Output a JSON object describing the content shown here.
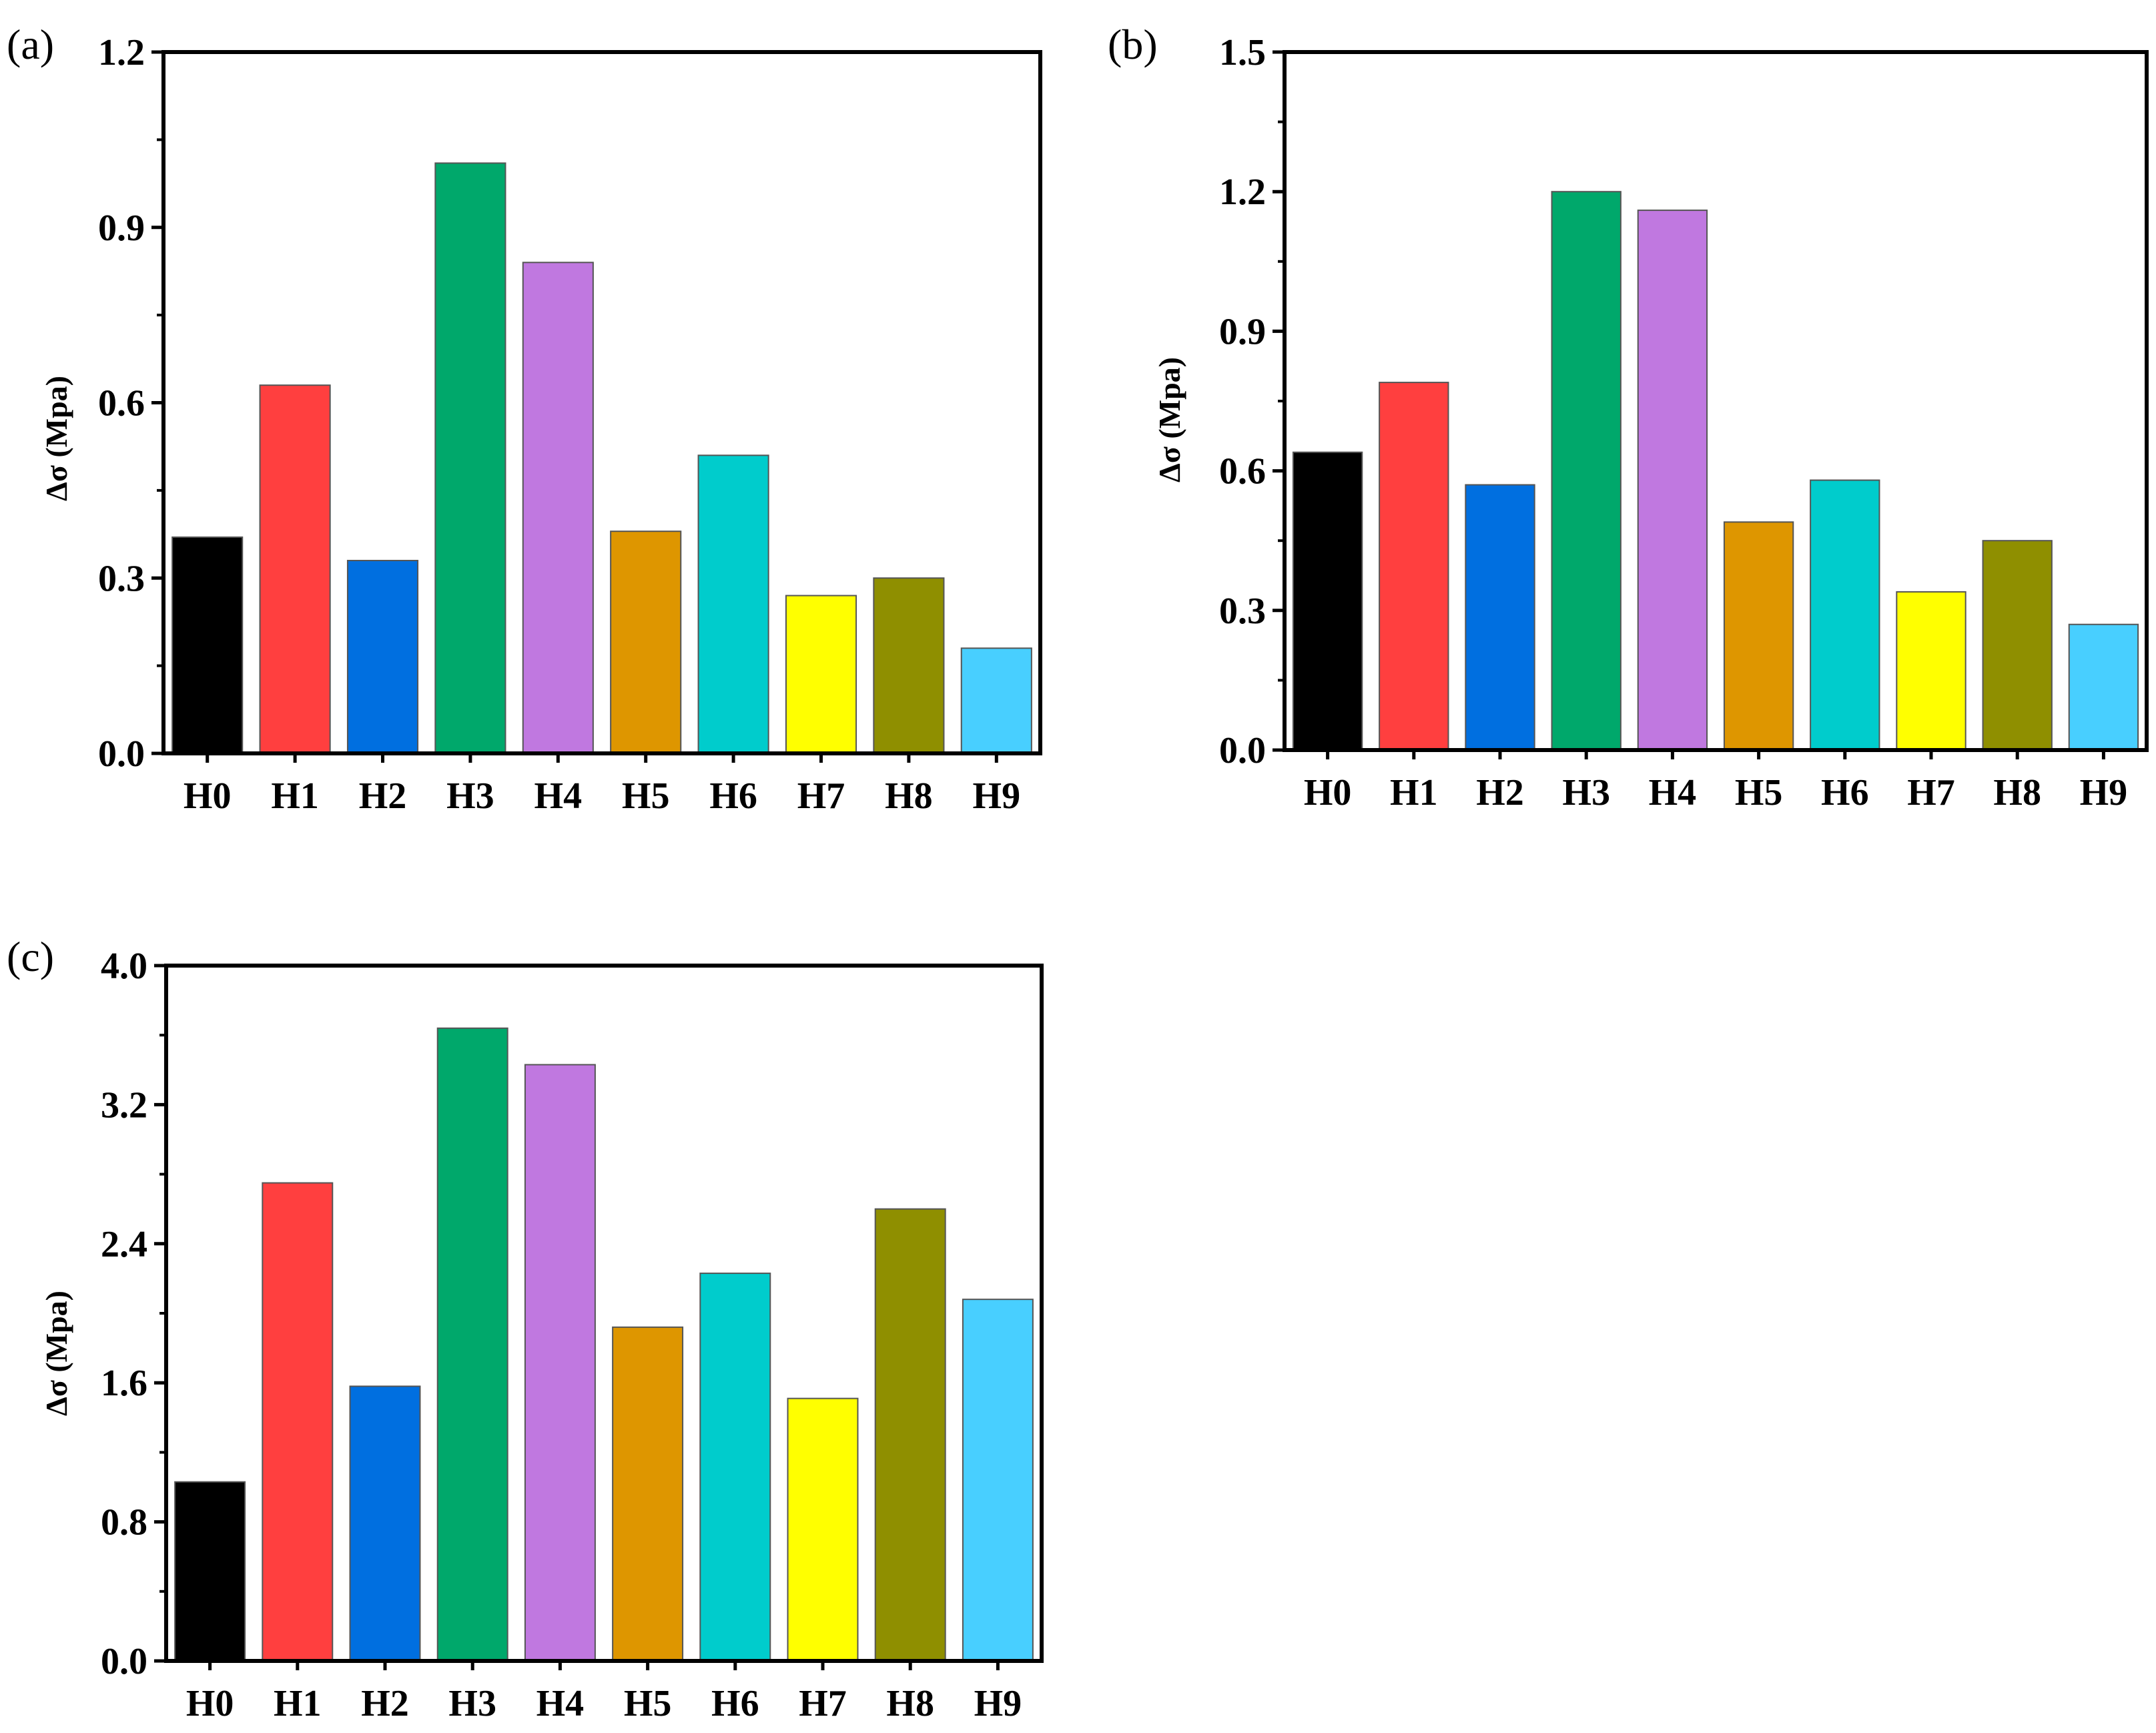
{
  "chart_data": [
    {
      "type": "bar",
      "panel_label": "(a)",
      "ylabel": "Δσ (Mpa)",
      "ylim": [
        0,
        1.2
      ],
      "yticks": [
        "0.0",
        "0.3",
        "0.6",
        "0.9",
        "1.2"
      ],
      "categories": [
        "H0",
        "H1",
        "H2",
        "H3",
        "H4",
        "H5",
        "H6",
        "H7",
        "H8",
        "H9"
      ],
      "values": [
        0.37,
        0.63,
        0.33,
        1.01,
        0.84,
        0.38,
        0.51,
        0.27,
        0.3,
        0.18
      ],
      "colors": [
        "#000000",
        "#ff3f3f",
        "#006fe0",
        "#00a86b",
        "#c078e0",
        "#de9600",
        "#00cccc",
        "#ffff00",
        "#8f8f00",
        "#48cfff"
      ]
    },
    {
      "type": "bar",
      "panel_label": "(b)",
      "ylabel": "Δσ (Mpa)",
      "ylim": [
        0,
        1.5
      ],
      "yticks": [
        "0.0",
        "0.3",
        "0.6",
        "0.9",
        "1.2",
        "1.5"
      ],
      "categories": [
        "H0",
        "H1",
        "H2",
        "H3",
        "H4",
        "H5",
        "H6",
        "H7",
        "H8",
        "H9"
      ],
      "values": [
        0.64,
        0.79,
        0.57,
        1.2,
        1.16,
        0.49,
        0.58,
        0.34,
        0.45,
        0.27
      ],
      "colors": [
        "#000000",
        "#ff3f3f",
        "#006fe0",
        "#00a86b",
        "#c078e0",
        "#de9600",
        "#00cccc",
        "#ffff00",
        "#8f8f00",
        "#48cfff"
      ]
    },
    {
      "type": "bar",
      "panel_label": "(c)",
      "ylabel": "Δσ (Mpa)",
      "ylim": [
        0,
        4.0
      ],
      "yticks": [
        "0.0",
        "0.8",
        "1.6",
        "2.4",
        "3.2",
        "4.0"
      ],
      "categories": [
        "H0",
        "H1",
        "H2",
        "H3",
        "H4",
        "H5",
        "H6",
        "H7",
        "H8",
        "H9"
      ],
      "values": [
        1.03,
        2.75,
        1.58,
        3.64,
        3.43,
        1.92,
        2.23,
        1.51,
        2.6,
        2.08
      ],
      "colors": [
        "#000000",
        "#ff3f3f",
        "#006fe0",
        "#00a86b",
        "#c078e0",
        "#de9600",
        "#00cccc",
        "#ffff00",
        "#8f8f00",
        "#48cfff"
      ]
    }
  ]
}
